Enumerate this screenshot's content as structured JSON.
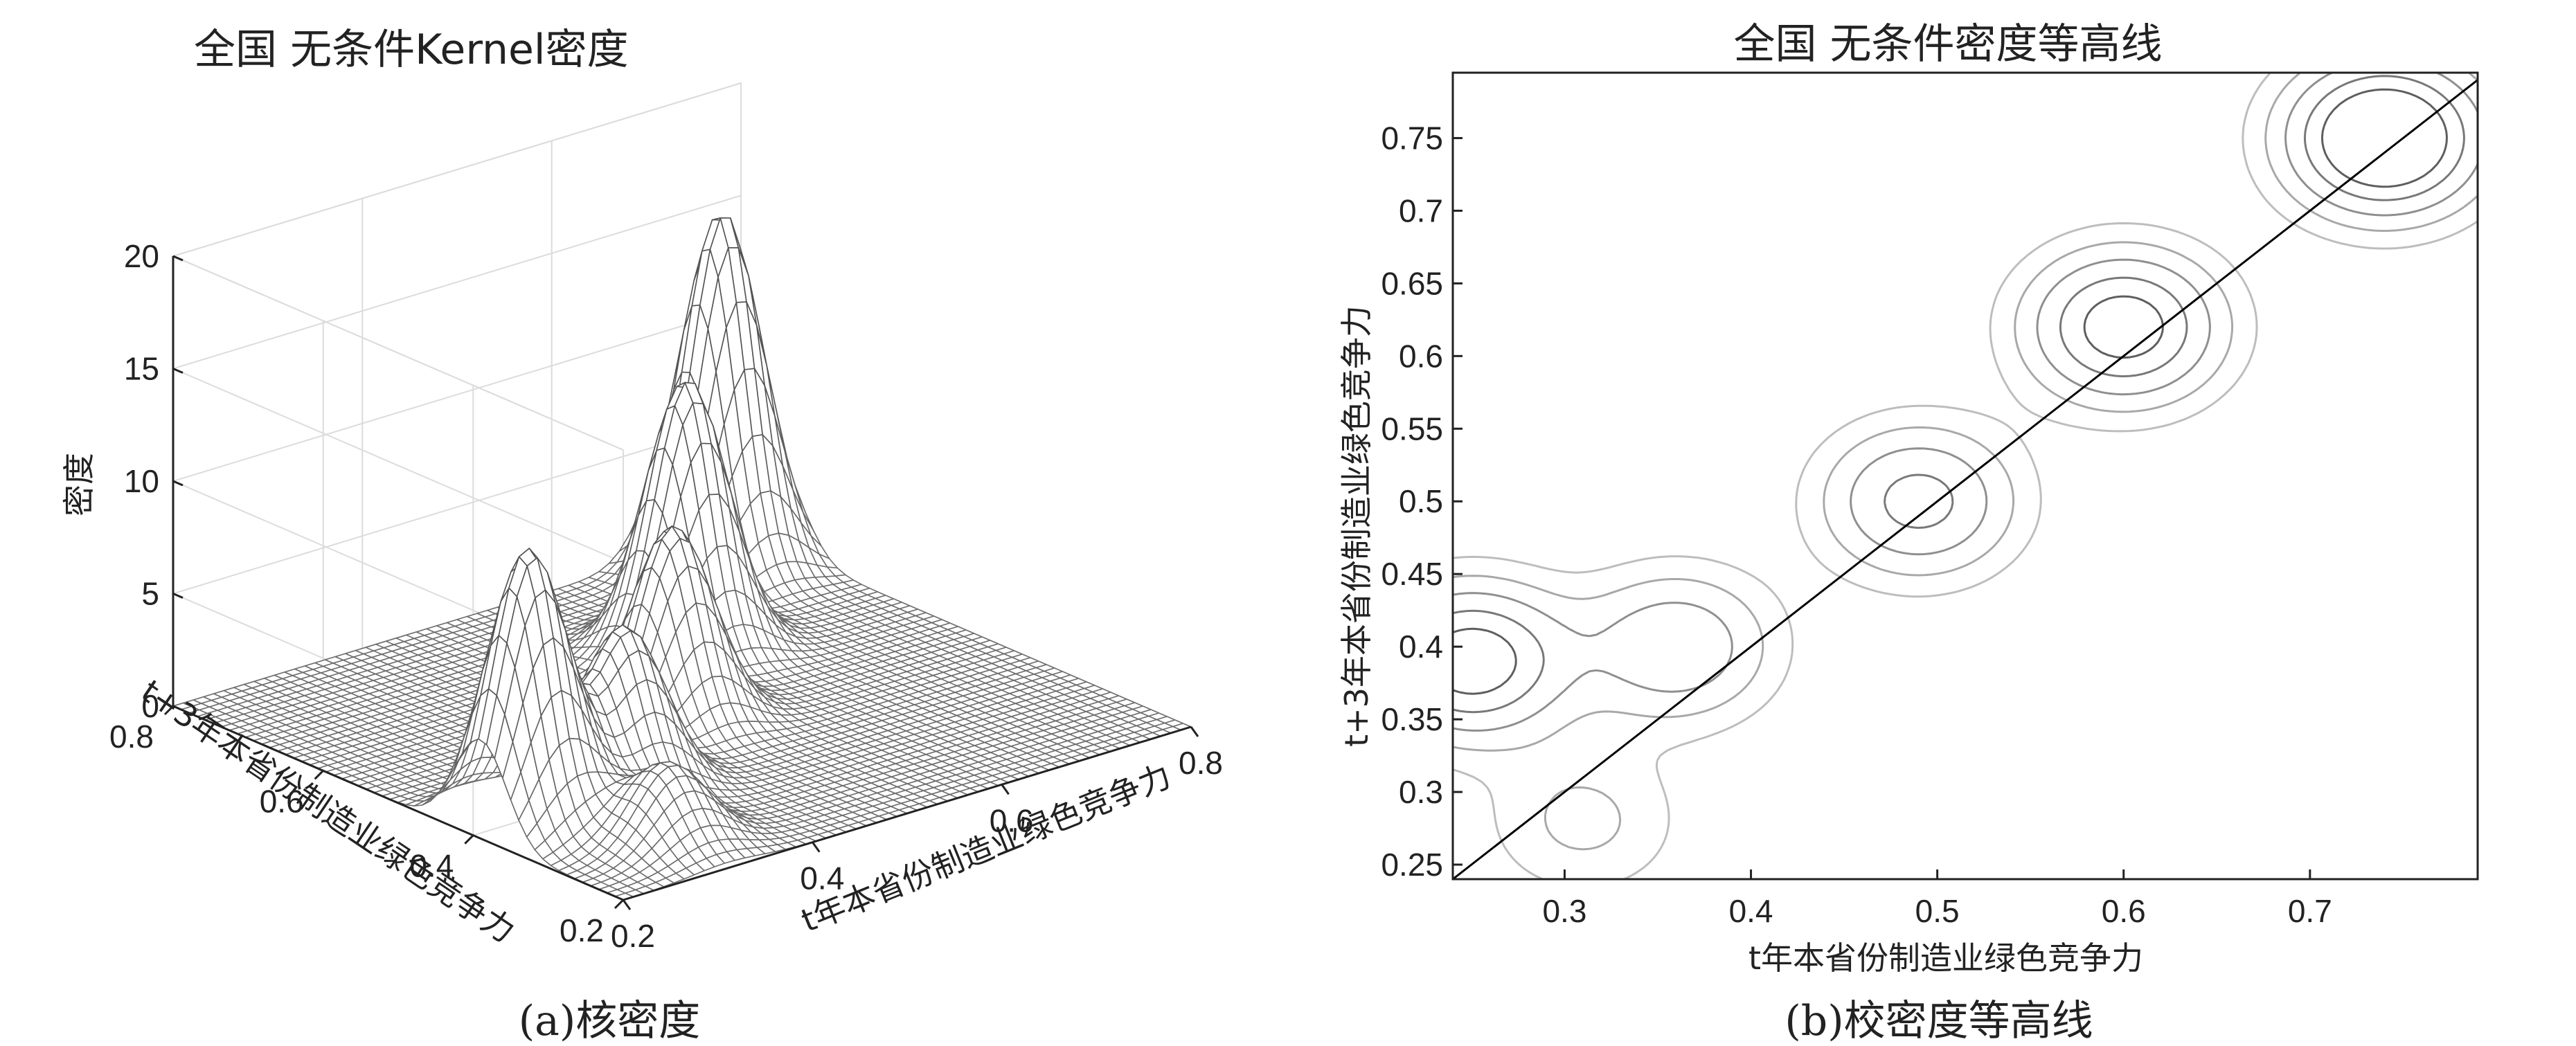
{
  "chart_data": [
    {
      "type": "surface",
      "title": "全国 无条件Kernel密度",
      "xlabel": "t年本省份制造业绿色竞争力",
      "ylabel": "t+3年本省份制造业绿色竞争力",
      "zlabel": "密度",
      "xlim": [
        0.2,
        0.8
      ],
      "ylim": [
        0.2,
        0.8
      ],
      "zlim": [
        0,
        20
      ],
      "xticks": [
        "0.2",
        "0.4",
        "0.6",
        "0.8"
      ],
      "yticks": [
        "0.2",
        "0.4",
        "0.6",
        "0.8"
      ],
      "zticks": [
        "0",
        "5",
        "10",
        "15",
        "20"
      ],
      "grid": true,
      "peaks": [
        {
          "x": 0.25,
          "y": 0.39,
          "z": 12.2
        },
        {
          "x": 0.36,
          "y": 0.4,
          "z": 7.2
        },
        {
          "x": 0.49,
          "y": 0.5,
          "z": 8.6
        },
        {
          "x": 0.6,
          "y": 0.62,
          "z": 12.0
        },
        {
          "x": 0.74,
          "y": 0.75,
          "z": 15.8
        },
        {
          "x": 0.31,
          "y": 0.28,
          "z": 3.5
        }
      ],
      "caption": "(a)核密度"
    },
    {
      "type": "contour",
      "title": "全国 无条件密度等高线",
      "xlabel": "t年本省份制造业绿色竞争力",
      "ylabel": "t+3年本省份制造业绿色竞争力",
      "xlim": [
        0.24,
        0.79
      ],
      "ylim": [
        0.24,
        0.795
      ],
      "xticks": [
        "0.3",
        "0.4",
        "0.5",
        "0.6",
        "0.7"
      ],
      "yticks": [
        "0.25",
        "0.3",
        "0.35",
        "0.4",
        "0.45",
        "0.5",
        "0.55",
        "0.6",
        "0.65",
        "0.7",
        "0.75"
      ],
      "levels": [
        1.5,
        3,
        5,
        7.5,
        10
      ],
      "diagonal": true,
      "caption": "(b)校密度等高线"
    }
  ]
}
